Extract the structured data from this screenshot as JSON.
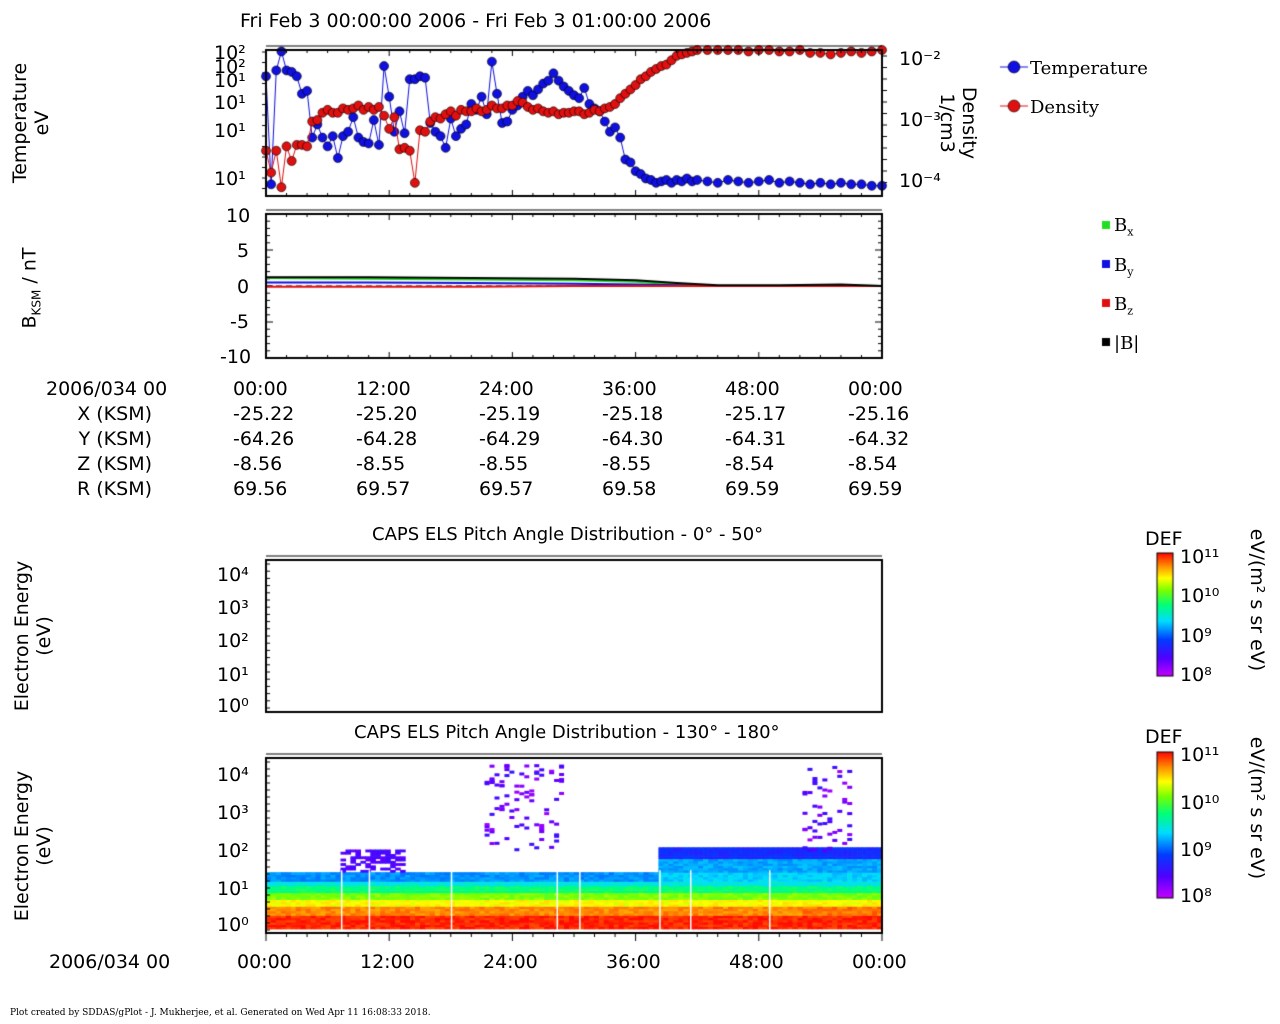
{
  "title": "Fri Feb 3 00:00:00 2006 - Fri Feb 3 01:00:00 2006",
  "panel1": {
    "ylabel_left": [
      "Temperature",
      "eV"
    ],
    "ylabel_right": [
      "Density",
      "1/cm3"
    ],
    "left_ticks": [
      "10²",
      "10²",
      "10¹",
      "10¹",
      "10¹",
      "10¹"
    ],
    "right_ticks": [
      "10⁻²",
      "10⁻³",
      "10⁻⁴"
    ],
    "legend": [
      {
        "label": "Temperature",
        "color": "#1010e0"
      },
      {
        "label": "Density",
        "color": "#e01010"
      }
    ]
  },
  "panel2": {
    "ylabel_main": "B",
    "ylabel_sub": "KSM",
    "ylabel_unit": " / nT",
    "ticks": [
      "10",
      "5",
      "0",
      "-5",
      "-10"
    ],
    "legend": [
      {
        "label": "B",
        "sub": "x",
        "color": "#22dd22"
      },
      {
        "label": "B",
        "sub": "y",
        "color": "#1010e0"
      },
      {
        "label": "B",
        "sub": "z",
        "color": "#e01010"
      },
      {
        "label": "|B|",
        "sub": "",
        "color": "#000000"
      }
    ]
  },
  "ephemeris": {
    "date_label": "2006/034 00",
    "times": [
      "00:00",
      "12:00",
      "24:00",
      "36:00",
      "48:00",
      "00:00"
    ],
    "rows": [
      {
        "label": "X (KSM)",
        "values": [
          "-25.22",
          "-25.20",
          "-25.19",
          "-25.18",
          "-25.17",
          "-25.16"
        ]
      },
      {
        "label": "Y (KSM)",
        "values": [
          "-64.26",
          "-64.28",
          "-64.29",
          "-64.30",
          "-64.31",
          "-64.32"
        ]
      },
      {
        "label": "Z (KSM)",
        "values": [
          "-8.56",
          "-8.55",
          "-8.55",
          "-8.55",
          "-8.54",
          "-8.54"
        ]
      },
      {
        "label": "R (KSM)",
        "values": [
          "69.56",
          "69.57",
          "69.57",
          "69.58",
          "69.59",
          "69.59"
        ]
      }
    ]
  },
  "spectrogram1": {
    "title": "CAPS ELS Pitch Angle Distribution - 0° - 50°",
    "ylabel": [
      "Electron Energy",
      "(eV)"
    ],
    "ticks": [
      "10⁴",
      "10³",
      "10²",
      "10¹",
      "10⁰"
    ]
  },
  "spectrogram2": {
    "title": "CAPS ELS Pitch Angle Distribution - 130° - 180°",
    "ylabel": [
      "Electron Energy",
      "(eV)"
    ],
    "ticks": [
      "10⁴",
      "10³",
      "10²",
      "10¹",
      "10⁰"
    ]
  },
  "colorbar": {
    "label": "DEF",
    "unit": "eV/(m² s sr eV)",
    "ticks": [
      "10¹¹",
      "10¹⁰",
      "10⁹",
      "10⁸"
    ]
  },
  "bottom_axis": {
    "date_label": "2006/034 00",
    "times": [
      "00:00",
      "12:00",
      "24:00",
      "36:00",
      "48:00",
      "00:00"
    ]
  },
  "footer": "Plot created by SDDAS/gPlot - J. Mukherjee, et al.  Generated on Wed Apr 11 16:08:33 2018.",
  "chart_data": [
    {
      "type": "line",
      "title": "",
      "x_unit": "minutes after 2006/034 00:00",
      "xlim": [
        0,
        60
      ],
      "series": [
        {
          "name": "Temperature",
          "color": "#1010e0",
          "x": [
            0,
            0.5,
            1,
            1.5,
            2,
            2.5,
            3,
            3.5,
            4,
            4.5,
            5,
            5.5,
            6,
            6.5,
            7,
            7.5,
            8,
            8.5,
            9,
            9.5,
            10,
            10.5,
            11,
            11.5,
            12,
            12.5,
            13,
            13.5,
            14,
            14.5,
            15,
            15.5,
            16,
            16.5,
            17,
            17.5,
            18,
            18.5,
            19,
            19.5,
            20,
            20.5,
            21,
            21.5,
            22,
            22.5,
            23,
            23.5,
            24,
            24.5,
            25,
            25.5,
            26,
            26.5,
            27,
            27.5,
            28,
            28.5,
            29,
            29.5,
            30,
            30.5,
            31,
            31.5,
            32,
            32.5,
            33,
            33.5,
            34,
            34.5,
            35,
            35.5,
            36,
            36.5,
            37,
            37.5,
            38,
            38.5,
            39,
            39.5,
            40,
            40.5,
            41,
            41.5,
            42,
            43,
            44,
            45,
            46,
            47,
            48,
            49,
            50,
            51,
            52,
            53,
            54,
            55,
            56,
            57,
            58,
            59,
            60
          ],
          "y": [
            0.82,
            0.08,
            0.86,
            0.99,
            0.86,
            0.85,
            0.82,
            0.7,
            0.72,
            0.4,
            0.49,
            0.4,
            0.34,
            0.41,
            0.26,
            0.41,
            0.44,
            0.54,
            0.4,
            0.37,
            0.36,
            0.52,
            0.35,
            0.89,
            0.68,
            0.44,
            0.58,
            0.43,
            0.8,
            0.8,
            0.82,
            0.81,
            0.5,
            0.44,
            0.41,
            0.33,
            0.53,
            0.41,
            0.46,
            0.49,
            0.63,
            0.59,
            0.68,
            0.56,
            0.92,
            0.7,
            0.5,
            0.51,
            0.59,
            0.62,
            0.68,
            0.72,
            0.69,
            0.73,
            0.77,
            0.79,
            0.84,
            0.79,
            0.75,
            0.72,
            0.69,
            0.67,
            0.74,
            0.63,
            0.6,
            0.58,
            0.51,
            0.44,
            0.47,
            0.4,
            0.25,
            0.23,
            0.17,
            0.15,
            0.12,
            0.11,
            0.09,
            0.1,
            0.11,
            0.09,
            0.11,
            0.1,
            0.12,
            0.1,
            0.11,
            0.1,
            0.09,
            0.11,
            0.1,
            0.09,
            0.1,
            0.11,
            0.09,
            0.1,
            0.09,
            0.08,
            0.09,
            0.08,
            0.09,
            0.08,
            0.08,
            0.07,
            0.07
          ],
          "y_note": "normalized 0-1 within log-scaled temperature axis"
        },
        {
          "name": "Density",
          "color": "#e01010",
          "x": [
            0,
            0.5,
            1,
            1.5,
            2,
            2.5,
            3,
            3.5,
            4,
            4.5,
            5,
            5.5,
            6,
            6.5,
            7,
            7.5,
            8,
            8.5,
            9,
            9.5,
            10,
            10.5,
            11,
            11.5,
            12,
            12.5,
            13,
            13.5,
            14,
            14.5,
            15,
            15.5,
            16,
            16.5,
            17,
            17.5,
            18,
            18.5,
            19,
            19.5,
            20,
            20.5,
            21,
            21.5,
            22,
            22.5,
            23,
            23.5,
            24,
            24.5,
            25,
            25.5,
            26,
            26.5,
            27,
            27.5,
            28,
            28.5,
            29,
            29.5,
            30,
            30.5,
            31,
            31.5,
            32,
            32.5,
            33,
            33.5,
            34,
            34.5,
            35,
            35.5,
            36,
            36.5,
            37,
            37.5,
            38,
            38.5,
            39,
            39.5,
            40,
            40.5,
            41,
            41.5,
            42,
            43,
            44,
            45,
            46,
            47,
            48,
            49,
            50,
            51,
            52,
            53,
            54,
            55,
            56,
            57,
            58,
            59,
            60
          ],
          "y": [
            0.31,
            0.16,
            0.31,
            0.06,
            0.34,
            0.24,
            0.35,
            0.35,
            0.34,
            0.51,
            0.52,
            0.57,
            0.59,
            0.57,
            0.57,
            0.6,
            0.59,
            0.6,
            0.62,
            0.59,
            0.61,
            0.59,
            0.61,
            0.55,
            0.46,
            0.54,
            0.32,
            0.33,
            0.31,
            0.09,
            0.45,
            0.44,
            0.51,
            0.54,
            0.53,
            0.56,
            0.58,
            0.55,
            0.59,
            0.58,
            0.58,
            0.6,
            0.58,
            0.59,
            0.62,
            0.6,
            0.6,
            0.62,
            0.62,
            0.65,
            0.64,
            0.61,
            0.59,
            0.6,
            0.58,
            0.57,
            0.58,
            0.56,
            0.57,
            0.57,
            0.58,
            0.58,
            0.56,
            0.57,
            0.59,
            0.58,
            0.6,
            0.61,
            0.63,
            0.67,
            0.7,
            0.73,
            0.76,
            0.8,
            0.82,
            0.85,
            0.87,
            0.89,
            0.9,
            0.93,
            0.96,
            0.97,
            0.98,
            0.99,
            1.0,
            1.0,
            1.0,
            1.0,
            1.0,
            0.99,
            1.0,
            1.0,
            0.99,
            0.99,
            1.0,
            0.98,
            0.98,
            0.97,
            0.98,
            0.99,
            0.98,
            0.99,
            1.0
          ],
          "y_note": "normalized 0-1 within log-scaled density axis"
        }
      ]
    },
    {
      "type": "line",
      "title": "",
      "ylabel": "BKSM / nT",
      "ylim": [
        -10,
        10
      ],
      "x_unit": "minutes after 2006/034 00:00",
      "xlim": [
        0,
        60
      ],
      "series": [
        {
          "name": "Bx",
          "color": "#22dd22",
          "x": [
            0,
            10,
            20,
            30,
            36,
            40,
            44,
            50,
            56,
            60
          ],
          "y": [
            1.1,
            1.0,
            0.9,
            0.8,
            0.6,
            0.2,
            0.0,
            0.0,
            0.1,
            0.0
          ]
        },
        {
          "name": "By",
          "color": "#1010e0",
          "x": [
            0,
            10,
            20,
            30,
            36,
            40,
            44,
            50,
            56,
            60
          ],
          "y": [
            0.5,
            0.5,
            0.4,
            0.3,
            0.2,
            0.1,
            0.0,
            0.0,
            0.0,
            0.0
          ]
        },
        {
          "name": "Bz",
          "color": "#e01010",
          "x": [
            0,
            10,
            20,
            30,
            36,
            40,
            44,
            50,
            56,
            60
          ],
          "y": [
            -0.1,
            -0.1,
            -0.1,
            0.0,
            0.0,
            0.0,
            0.0,
            0.0,
            0.0,
            0.0
          ]
        },
        {
          "name": "|B|",
          "color": "#000000",
          "x": [
            0,
            10,
            20,
            30,
            36,
            40,
            44,
            50,
            56,
            60
          ],
          "y": [
            1.2,
            1.2,
            1.1,
            1.0,
            0.8,
            0.4,
            0.1,
            0.1,
            0.2,
            0.0
          ]
        }
      ]
    },
    {
      "type": "heatmap",
      "title": "CAPS ELS Pitch Angle Distribution - 0° - 50°",
      "ylabel": "Electron Energy (eV)",
      "ylim": [
        1,
        20000
      ],
      "data": "empty (no counts)"
    },
    {
      "type": "heatmap",
      "title": "CAPS ELS Pitch Angle Distribution - 130° - 180°",
      "ylabel": "Electron Energy (eV)",
      "ylim": [
        1,
        20000
      ],
      "colorbar": {
        "label": "DEF",
        "range": [
          100000000.0,
          100000000000.0
        ],
        "unit": "eV/(m² s sr eV)"
      },
      "description_bands": [
        {
          "energy_range_eV": [
            1,
            3
          ],
          "log10_def": 10.9
        },
        {
          "energy_range_eV": [
            3,
            6
          ],
          "log10_def": 10.3
        },
        {
          "energy_range_eV": [
            6,
            12
          ],
          "log10_def": 9.6
        },
        {
          "energy_range_eV": [
            12,
            25
          ],
          "log10_def": 9.0
        }
      ]
    }
  ]
}
